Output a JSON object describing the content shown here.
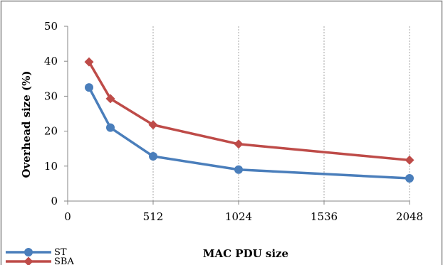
{
  "chart_data": {
    "type": "line",
    "xlabel": "MAC PDU size",
    "ylabel": "Overhead size (%)",
    "xlim": [
      0,
      2048
    ],
    "ylim": [
      0,
      50
    ],
    "xticks": [
      0,
      512,
      1024,
      1536,
      2048
    ],
    "yticks": [
      0,
      10,
      20,
      30,
      40,
      50
    ],
    "grid": "vertical-dashed",
    "legend": "bottom-left",
    "series": [
      {
        "name": "ST",
        "color": "#4a7ebb",
        "marker": "circle",
        "x": [
          128,
          256,
          512,
          1024,
          2048
        ],
        "y": [
          32.5,
          21,
          12.8,
          9,
          6.5
        ]
      },
      {
        "name": "SBA",
        "color": "#be4b48",
        "marker": "diamond",
        "x": [
          128,
          256,
          512,
          1024,
          2048
        ],
        "y": [
          39.8,
          29.3,
          21.8,
          16.3,
          11.7
        ]
      }
    ]
  }
}
